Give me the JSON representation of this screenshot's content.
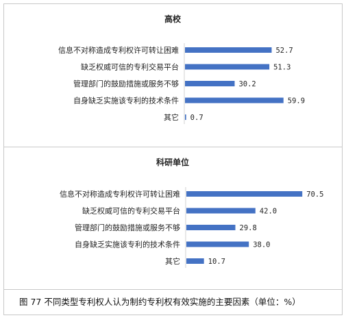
{
  "colors": {
    "bar": "#4472c4",
    "text": "#222222",
    "border": "#c8c8c8"
  },
  "chart_data": [
    {
      "type": "bar",
      "orientation": "horizontal",
      "title": "高校",
      "categories": [
        "信息不对称造成专利权许可转让困难",
        "缺乏权威可信的专利交易平台",
        "管理部门的鼓励措施或服务不够",
        "自身缺乏实施该专利的技术条件",
        "其它"
      ],
      "values": [
        52.7,
        51.3,
        30.2,
        59.9,
        0.7
      ],
      "value_labels": [
        "52.7",
        "51.3",
        "30.2",
        "59.9",
        "0.7"
      ],
      "grid": false,
      "legend": "none"
    },
    {
      "type": "bar",
      "orientation": "horizontal",
      "title": "科研单位",
      "categories": [
        "信息不对称造成专利权许可转让困难",
        "缺乏权威可信的专利交易平台",
        "管理部门的鼓励措施或服务不够",
        "自身缺乏实施该专利的技术条件",
        "其它"
      ],
      "values": [
        70.5,
        42.0,
        29.8,
        38.0,
        10.7
      ],
      "value_labels": [
        "70.5",
        "42.0",
        "29.8",
        "38.0",
        "10.7"
      ],
      "grid": false,
      "legend": "none"
    }
  ],
  "caption": "图 77 不同类型专利权人认为制约专利权有效实施的主要因素（单位：%）"
}
